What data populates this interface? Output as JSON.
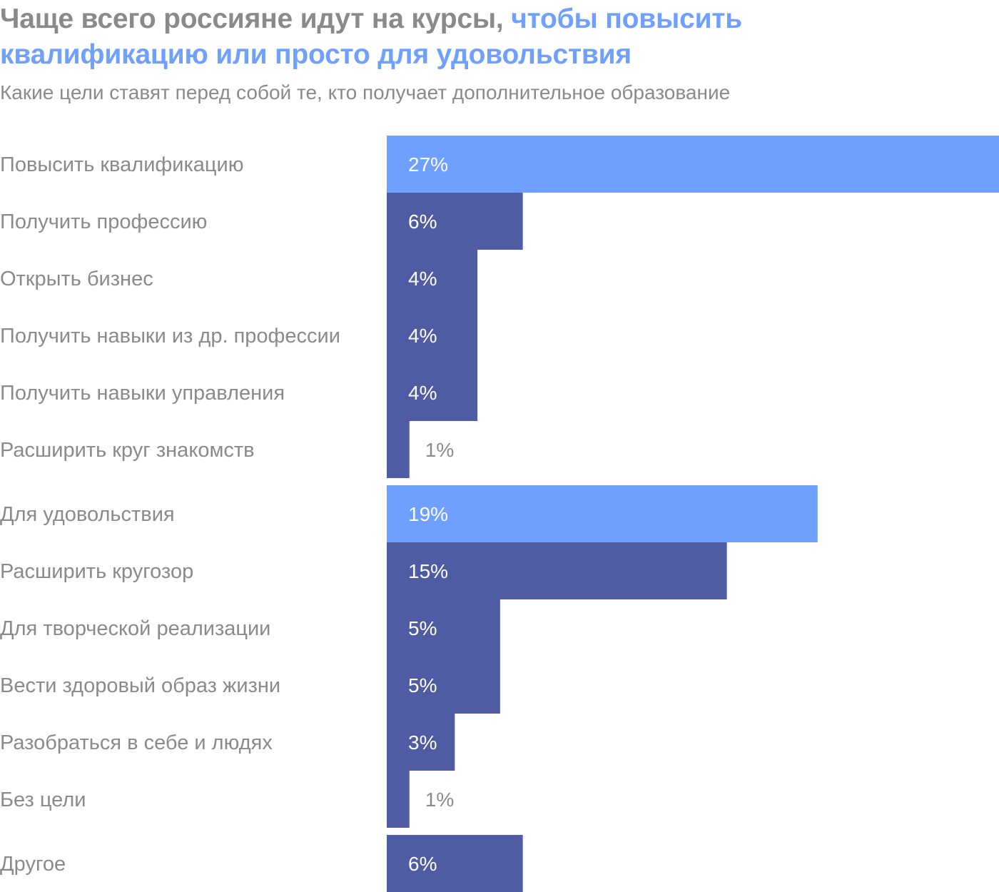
{
  "title": {
    "part1": "Чаще всего россияне идут на курсы,",
    "part2": "чтобы повысить квалификацию или просто для удовольствия"
  },
  "subtitle": "Какие цели ставят перед собой те, кто получает дополнительное образование",
  "colors": {
    "highlight": "#6fa0ff",
    "bar": "#4f5ca3",
    "text": "#8a8a8a",
    "label_inside": "#ffffff"
  },
  "chart_data": {
    "type": "bar",
    "orientation": "horizontal",
    "title": "Чаще всего россияне идут на курсы, чтобы повысить квалификацию или просто для удовольствия",
    "subtitle": "Какие цели ставят перед собой те, кто получает дополнительное образование",
    "unit": "%",
    "xlim": [
      0,
      27
    ],
    "groups": [
      {
        "items": [
          {
            "category": "Повысить квалификацию",
            "value": 27,
            "label": "27%",
            "highlight": true
          },
          {
            "category": "Получить профессию",
            "value": 6,
            "label": "6%",
            "highlight": false
          },
          {
            "category": "Открыть бизнес",
            "value": 4,
            "label": "4%",
            "highlight": false
          },
          {
            "category": "Получить навыки из др. профессии",
            "value": 4,
            "label": "4%",
            "highlight": false
          },
          {
            "category": "Получить навыки управления",
            "value": 4,
            "label": "4%",
            "highlight": false
          },
          {
            "category": "Расширить круг знакомств",
            "value": 1,
            "label": "1%",
            "highlight": false
          }
        ]
      },
      {
        "items": [
          {
            "category": "Для удовольствия",
            "value": 19,
            "label": "19%",
            "highlight": true
          },
          {
            "category": "Расширить кругозор",
            "value": 15,
            "label": "15%",
            "highlight": false
          },
          {
            "category": "Для творческой реализации",
            "value": 5,
            "label": "5%",
            "highlight": false
          },
          {
            "category": "Вести здоровый образ жизни",
            "value": 5,
            "label": "5%",
            "highlight": false
          },
          {
            "category": "Разобраться в себе и людях",
            "value": 3,
            "label": "3%",
            "highlight": false
          },
          {
            "category": "Без цели",
            "value": 1,
            "label": "1%",
            "highlight": false
          }
        ]
      },
      {
        "items": [
          {
            "category": "Другое",
            "value": 6,
            "label": "6%",
            "highlight": false
          }
        ]
      }
    ]
  }
}
